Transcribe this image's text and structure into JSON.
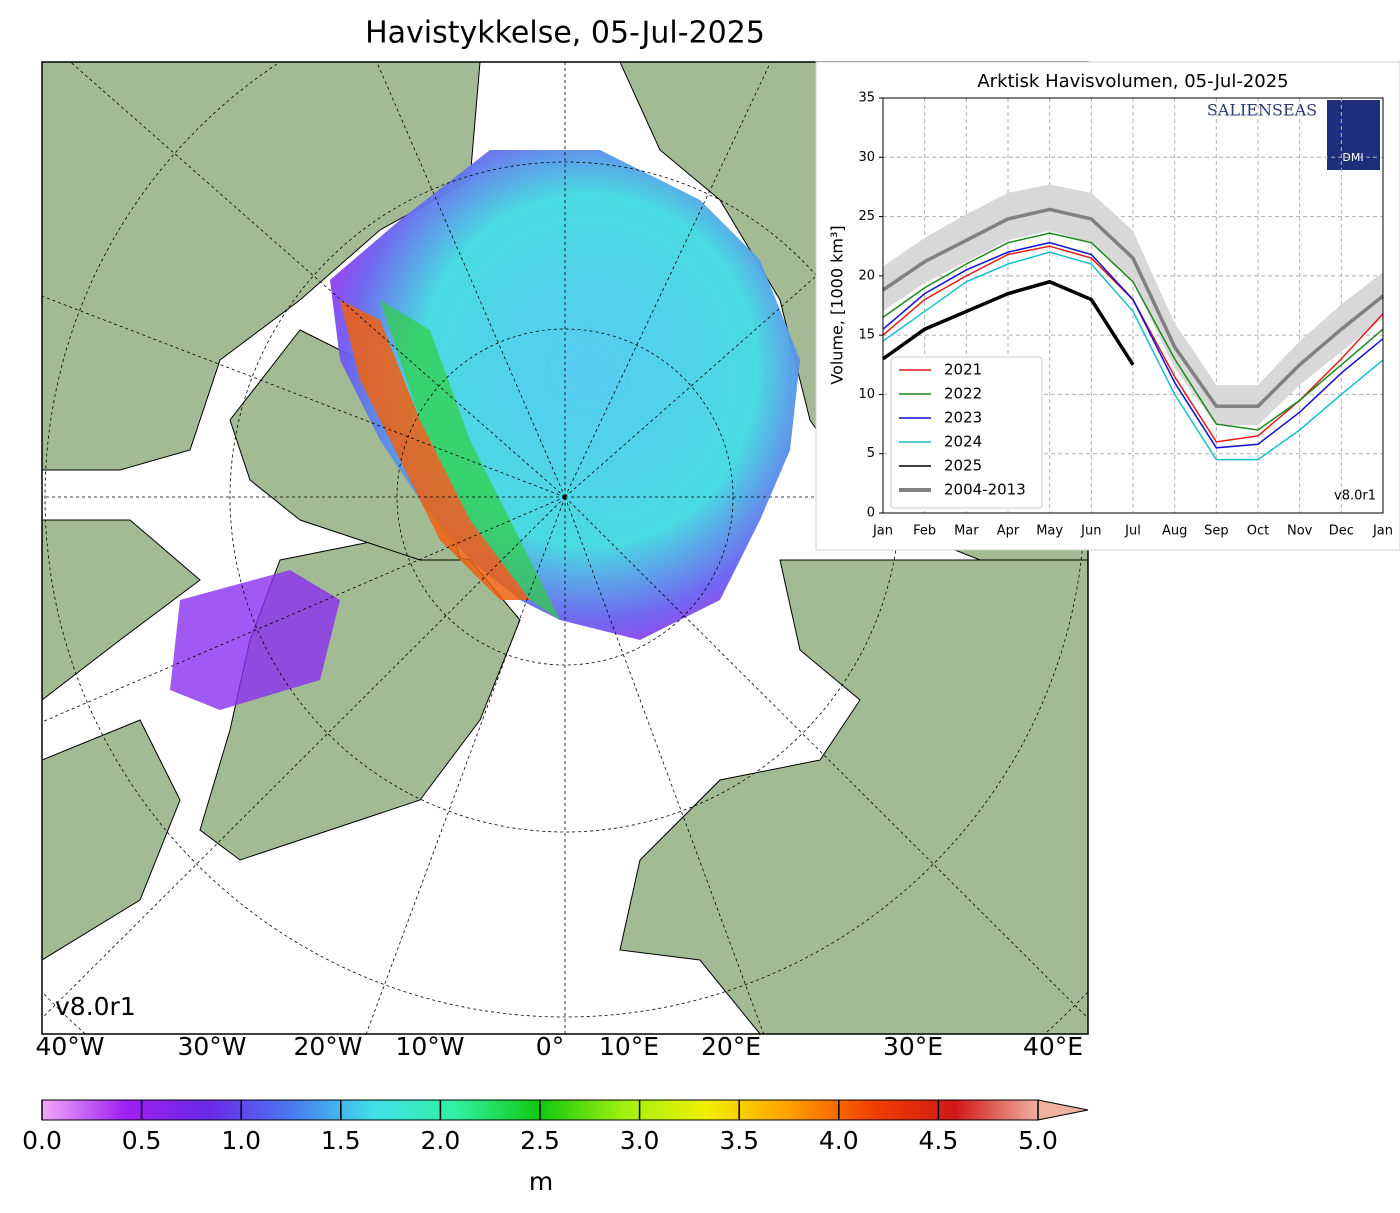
{
  "title": "Havistykkelse, 05-Jul-2025",
  "map": {
    "version": "v8.0r1",
    "longitude_labels": [
      "40°W",
      "30°W",
      "20°W",
      "10°W",
      "0°",
      "10°E",
      "20°E",
      "30°E",
      "40°E"
    ]
  },
  "colorbar": {
    "label": "m",
    "lim": [
      0,
      5
    ],
    "colors": [
      "#f0a8f8",
      "#a020f0",
      "#6a28e8",
      "#4a78f0",
      "#40e0e8",
      "#30f0a0",
      "#10c810",
      "#a0f010",
      "#f0f000",
      "#ffa000",
      "#f04000",
      "#d01818",
      "#f0b0a0"
    ],
    "ticks": [
      {
        "value": 0,
        "label": "0.0"
      },
      {
        "value": 0.5,
        "label": "0.5"
      },
      {
        "value": 1,
        "label": "1.0"
      },
      {
        "value": 1.5,
        "label": "1.5"
      },
      {
        "value": 2,
        "label": "2.0"
      },
      {
        "value": 2.5,
        "label": "2.5"
      },
      {
        "value": 3,
        "label": "3.0"
      },
      {
        "value": 3.5,
        "label": "3.5"
      },
      {
        "value": 4,
        "label": "4.0"
      },
      {
        "value": 4.5,
        "label": "4.5"
      },
      {
        "value": 5,
        "label": "5.0"
      }
    ]
  },
  "chart_data": {
    "type": "line",
    "title": "Arktisk Havisvolumen, 05-Jul-2025",
    "y_label": "Volume, [1000 km³]",
    "logo_text": "SALIENSEAS",
    "logo_badge": "DMI",
    "version": "v8.0r1",
    "categories": [
      "Jan",
      "Feb",
      "Mar",
      "Apr",
      "May",
      "Jun",
      "Jul",
      "Aug",
      "Sep",
      "Oct",
      "Nov",
      "Dec",
      "Jan"
    ],
    "ylim": [
      0,
      35
    ],
    "yticks": [
      0,
      5,
      10,
      15,
      20,
      25,
      30,
      35
    ],
    "grid": true,
    "legend": "lower left",
    "series": [
      {
        "name": "2021",
        "color": "#e41a1c",
        "values": [
          15.0,
          18.0,
          20.0,
          21.8,
          22.5,
          21.5,
          18.0,
          11.5,
          6.0,
          6.5,
          9.5,
          13.0,
          16.8
        ]
      },
      {
        "name": "2022",
        "color": "#1a8a1a",
        "values": [
          16.5,
          19.0,
          21.0,
          22.8,
          23.6,
          22.8,
          19.5,
          13.0,
          7.5,
          7.0,
          9.5,
          12.5,
          15.5
        ]
      },
      {
        "name": "2023",
        "color": "#1010d0",
        "values": [
          15.5,
          18.5,
          20.5,
          22.0,
          22.8,
          21.8,
          18.0,
          11.0,
          5.5,
          5.8,
          8.5,
          11.8,
          14.7
        ]
      },
      {
        "name": "2024",
        "color": "#17becf",
        "values": [
          14.5,
          17.0,
          19.5,
          21.0,
          22.0,
          21.0,
          17.0,
          10.0,
          4.5,
          4.5,
          7.0,
          10.0,
          12.9
        ]
      },
      {
        "name": "2025",
        "color": "#000000",
        "values": [
          13.0,
          15.5,
          17.0,
          18.5,
          19.5,
          18.0,
          12.5,
          null,
          null,
          null,
          null,
          null,
          null
        ]
      },
      {
        "name": "2004-2013",
        "color": "#808080",
        "values": [
          18.8,
          21.2,
          23.0,
          24.8,
          25.6,
          24.8,
          21.5,
          14.0,
          9.0,
          9.0,
          12.5,
          15.5,
          18.3
        ],
        "band_color": "#d8d8d8",
        "band_upper": [
          20.8,
          23.2,
          25.2,
          27.0,
          27.7,
          27.0,
          23.8,
          16.0,
          10.8,
          10.8,
          14.5,
          17.6,
          20.3
        ],
        "band_lower": [
          17.0,
          19.4,
          21.2,
          23.0,
          23.8,
          22.8,
          19.5,
          12.2,
          7.4,
          7.4,
          10.8,
          13.6,
          16.4
        ]
      }
    ]
  }
}
